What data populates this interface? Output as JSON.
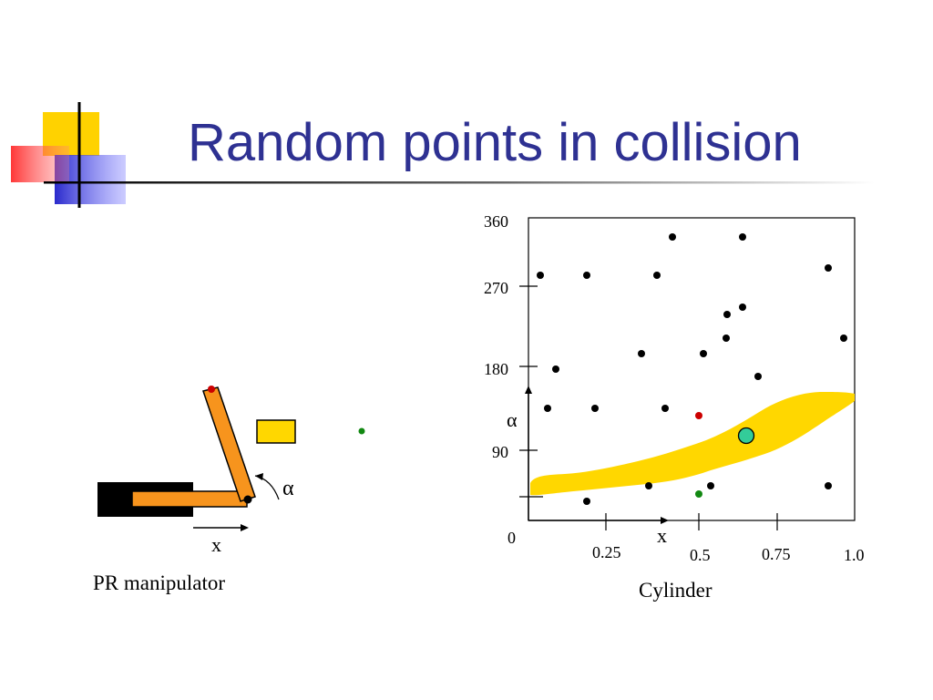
{
  "slide": {
    "title": "Random points in collision"
  },
  "manipulator": {
    "joint_labels": {
      "prismatic": "x",
      "revolute": "α"
    },
    "caption": "PR manipulator"
  },
  "cspace": {
    "caption": "Cylinder",
    "axis_labels": {
      "x": "x",
      "y": "α"
    },
    "y_ticks": [
      "360",
      "270",
      "180",
      "90"
    ],
    "origin_label": "0",
    "x_ticks": [
      "0.25",
      "0.5",
      "0.75",
      "1.0"
    ]
  },
  "colors": {
    "title": "#2e3192",
    "link": "#f7941d",
    "obstacle": "#ffd700",
    "base": "#000000",
    "point_free": "#000000",
    "point_red": "#cc0000",
    "point_green": "#118811",
    "highlight": "#33cc99"
  }
}
